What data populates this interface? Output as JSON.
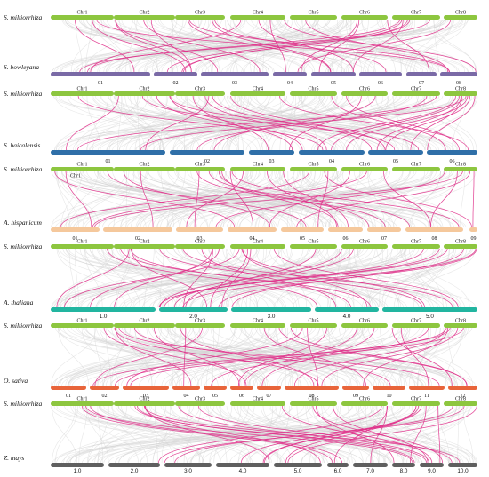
{
  "colors": {
    "ref_chrom": "#8dc63f",
    "background_link": "#d3d3d3",
    "highlight_link": "#e0338c"
  },
  "reference_species": "S. miltiorrhiza",
  "reference_chromosomes": [
    "Chr1",
    "Chr2",
    "Chr3",
    "Chr4",
    "Chr5",
    "Chr6",
    "Chr7",
    "Chr8"
  ],
  "panels": [
    {
      "id": "bowleyana",
      "species": "S. bowleyana",
      "color": "#7a6aa6",
      "number_font": "serif",
      "chromosomes": [
        "01",
        "02",
        "03",
        "04",
        "05",
        "06",
        "07",
        "08"
      ],
      "extra_ref_label": ""
    },
    {
      "id": "baicalensis",
      "species": "S. baicalensis",
      "color": "#2f6fa8",
      "number_font": "serif",
      "chromosomes": [
        "01",
        "02",
        "03",
        "04",
        "05",
        "06"
      ],
      "extra_ref_label": ""
    },
    {
      "id": "hispanicum",
      "species": "A. hispanicum",
      "color": "#f5c89c",
      "number_font": "serif",
      "chromosomes": [
        "01",
        "02",
        "03",
        "04",
        "05",
        "06",
        "07",
        "08",
        "09"
      ],
      "extra_ref_label": "Chr1"
    },
    {
      "id": "thaliana",
      "species": "A. thaliana",
      "color": "#22b5a0",
      "number_font": "sans",
      "chromosomes": [
        "1.0",
        "2.0",
        "3.0",
        "4.0",
        "5.0"
      ],
      "extra_ref_label": ""
    },
    {
      "id": "sativa",
      "species": "O. sativa",
      "color": "#e8643a",
      "number_font": "serif",
      "chromosomes": [
        "01",
        "02",
        "03",
        "04",
        "05",
        "06",
        "07",
        "08",
        "09",
        "10",
        "11",
        "12"
      ],
      "extra_ref_label": ""
    },
    {
      "id": "mays",
      "species": "Z. mays",
      "color": "#5f5f5f",
      "number_font": "sans",
      "chromosomes": [
        "1.0",
        "2.0",
        "3.0",
        "4.0",
        "5.0",
        "6.0",
        "7.0",
        "8.0",
        "9.0",
        "10.0"
      ],
      "extra_ref_label": ""
    }
  ]
}
